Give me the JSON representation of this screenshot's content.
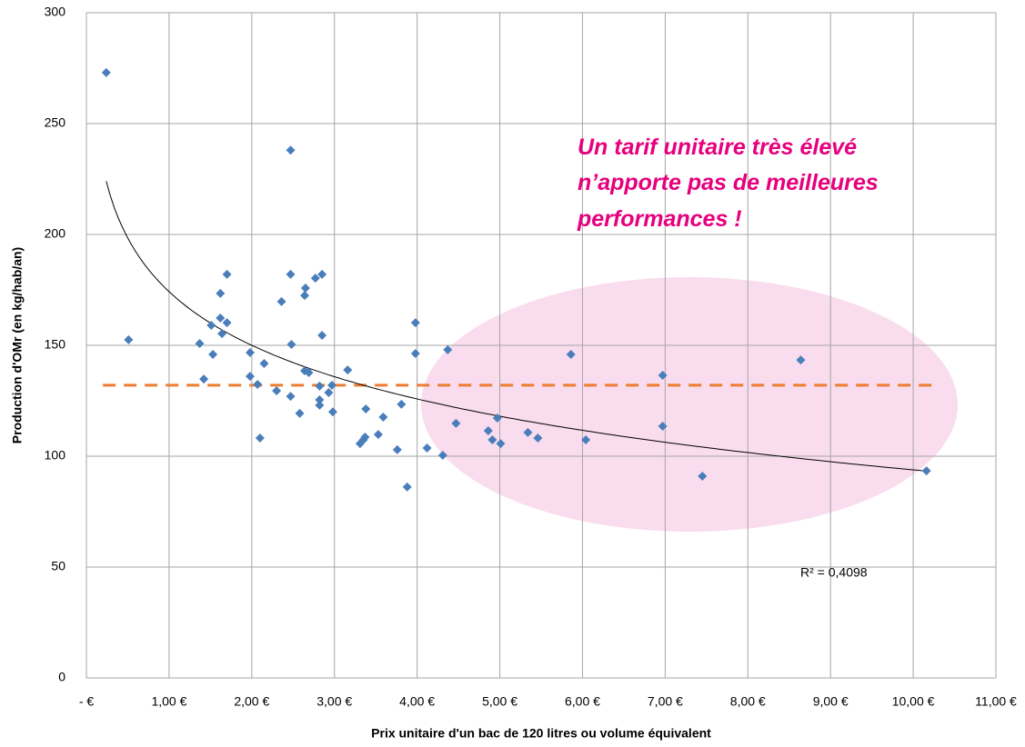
{
  "chart_data": {
    "type": "scatter",
    "x_label": "Prix unitaire d'un bac de 120 litres ou volume équivalent",
    "y_label": "Production d'OMr (en kg/hab/an)",
    "annotation": [
      "Un tarif unitaire très élevé",
      "n’apporte pas de meilleures",
      "performances !"
    ],
    "r2_label": "R² = 0,4098",
    "color": "#4a7ebb",
    "grid": true,
    "xlim": [
      0,
      11
    ],
    "ylim": [
      0,
      300
    ],
    "xticks": [
      {
        "value": 0,
        "label": "-  €"
      },
      {
        "value": 1,
        "label": "1,00 €"
      },
      {
        "value": 2,
        "label": "2,00 €"
      },
      {
        "value": 3,
        "label": "3,00 €"
      },
      {
        "value": 4,
        "label": "4,00 €"
      },
      {
        "value": 5,
        "label": "5,00 €"
      },
      {
        "value": 6,
        "label": "6,00 €"
      },
      {
        "value": 7,
        "label": "7,00 €"
      },
      {
        "value": 8,
        "label": "8,00 €"
      },
      {
        "value": 9,
        "label": "9,00 €"
      },
      {
        "value": 10,
        "label": "10,00 €"
      },
      {
        "value": 11,
        "label": "11,00 €"
      }
    ],
    "yticks": [
      0,
      50,
      100,
      150,
      200,
      250,
      300
    ],
    "x": [
      0.24,
      0.51,
      1.37,
      1.42,
      1.51,
      1.53,
      1.62,
      1.62,
      1.64,
      1.7,
      1.7,
      1.98,
      1.98,
      2.07,
      2.1,
      2.15,
      2.3,
      2.36,
      2.47,
      2.47,
      2.48,
      2.47,
      2.58,
      2.64,
      2.65,
      2.64,
      2.69,
      2.77,
      2.82,
      2.82,
      2.82,
      2.85,
      2.85,
      2.93,
      2.97,
      2.98,
      3.16,
      3.31,
      3.35,
      3.37,
      3.38,
      3.53,
      3.59,
      3.76,
      3.81,
      3.88,
      3.98,
      3.98,
      4.12,
      4.31,
      4.37,
      4.47,
      4.86,
      4.91,
      4.97,
      5.01,
      5.34,
      5.46,
      5.86,
      6.04,
      6.97,
      6.97,
      7.45,
      8.64,
      10.16
    ],
    "values": [
      273,
      152.5,
      150.8,
      134.8,
      159,
      145.9,
      173.4,
      162.3,
      155.3,
      182,
      160.2,
      146.7,
      136,
      132.4,
      108.2,
      141.8,
      129.5,
      169.7,
      238,
      182,
      150.4,
      127,
      119.3,
      172.5,
      175.8,
      138.5,
      137.7,
      180.3,
      131.6,
      125.4,
      123,
      182,
      154.5,
      128.7,
      132,
      120,
      138.9,
      105.7,
      107.4,
      108.6,
      121.3,
      109.8,
      117.6,
      102.9,
      123.4,
      86.1,
      160.2,
      146.3,
      103.7,
      100.4,
      148,
      114.8,
      111.5,
      107.4,
      117.2,
      105.7,
      110.7,
      108.2,
      145.9,
      107.4,
      136.5,
      113.5,
      91,
      143.4,
      93.4
    ],
    "trendline": {
      "type": "log",
      "a": 174.2,
      "b": -34.9,
      "xrange": [
        0.24,
        10.16
      ],
      "color": "#000000"
    },
    "reference_line": {
      "value": 132,
      "xrange": [
        0.2,
        10.27
      ],
      "color": "#ed7d31"
    }
  }
}
